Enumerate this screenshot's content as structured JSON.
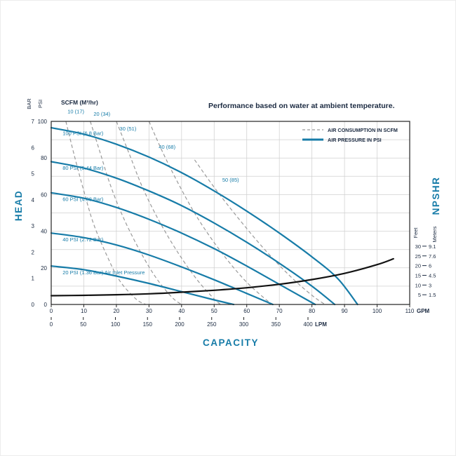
{
  "title": "Performance based on water at ambient temperature.",
  "colors": {
    "accent_blue": "#177CA8",
    "navy_text": "#1B2A41",
    "dashed_gray": "#9A9A9A",
    "grid_gray": "#D0D0D0",
    "npshr_black": "#121212",
    "plot_border": "#222222"
  },
  "legend": {
    "items": [
      {
        "label": "AIR CONSUMPTION IN SCFM",
        "style": "dashed"
      },
      {
        "label": "AIR PRESSURE IN PSI",
        "style": "solid"
      }
    ]
  },
  "chart_data": {
    "type": "line",
    "title": "Performance based on water at ambient temperature.",
    "scfm_header": "SCFM (M³/hr)",
    "x_axis": {
      "title": "CAPACITY",
      "primary_unit": "GPM",
      "primary_ticks": [
        0,
        10,
        20,
        30,
        40,
        50,
        60,
        70,
        80,
        90,
        100,
        110
      ],
      "primary_range": [
        0,
        110
      ],
      "secondary_unit": "LPM",
      "secondary_ticks": [
        0,
        50,
        100,
        150,
        200,
        250,
        300,
        350,
        400
      ],
      "secondary_range": [
        0,
        400
      ]
    },
    "y_axis": {
      "title": "HEAD",
      "primary_unit": "PSI",
      "primary_ticks": [
        0,
        20,
        40,
        60,
        80,
        100
      ],
      "primary_range": [
        0,
        100
      ],
      "secondary_unit": "BAR",
      "secondary_ticks": [
        0,
        1,
        2,
        3,
        4,
        5,
        6,
        7
      ],
      "secondary_range": [
        0,
        7
      ],
      "grid": true
    },
    "right_axis": {
      "title": "NPSHR",
      "unit_feet": "Feet",
      "unit_meters": "Meters",
      "ticks": [
        {
          "feet": 30,
          "meters": 9.1
        },
        {
          "feet": 25,
          "meters": 7.6
        },
        {
          "feet": 20,
          "meters": 6
        },
        {
          "feet": 15,
          "meters": 4.5
        },
        {
          "feet": 10,
          "meters": 3
        },
        {
          "feet": 5,
          "meters": 1.5
        }
      ]
    },
    "air_pressure_curves": [
      {
        "label": "100 PSI (6.8 Bar)",
        "label_anchor": {
          "gpm": 3.5,
          "psi": 92.5
        },
        "points": [
          [
            0,
            96.5
          ],
          [
            10,
            93
          ],
          [
            20,
            87.5
          ],
          [
            30,
            80.5
          ],
          [
            40,
            72
          ],
          [
            50,
            62
          ],
          [
            60,
            51
          ],
          [
            70,
            39
          ],
          [
            80,
            26
          ],
          [
            88,
            14
          ],
          [
            94,
            0
          ]
        ]
      },
      {
        "label": "80 PSI (5.44 Bar)",
        "label_anchor": {
          "gpm": 3.5,
          "psi": 73.5
        },
        "points": [
          [
            0,
            78
          ],
          [
            10,
            74.5
          ],
          [
            20,
            69
          ],
          [
            30,
            62
          ],
          [
            40,
            54
          ],
          [
            50,
            44.5
          ],
          [
            60,
            34
          ],
          [
            70,
            22.5
          ],
          [
            80,
            10
          ],
          [
            87,
            0
          ]
        ]
      },
      {
        "label": "60 PSI (4.08 Bar)",
        "label_anchor": {
          "gpm": 3.5,
          "psi": 56.5
        },
        "points": [
          [
            0,
            61
          ],
          [
            10,
            58
          ],
          [
            20,
            53
          ],
          [
            30,
            46.5
          ],
          [
            40,
            39
          ],
          [
            50,
            30.5
          ],
          [
            60,
            21
          ],
          [
            70,
            11
          ],
          [
            81,
            0
          ]
        ]
      },
      {
        "label": "40 PSI (2.72 Bar)",
        "label_anchor": {
          "gpm": 3.5,
          "psi": 34.5
        },
        "points": [
          [
            0,
            39
          ],
          [
            10,
            36.5
          ],
          [
            20,
            32.5
          ],
          [
            30,
            27
          ],
          [
            40,
            20.5
          ],
          [
            50,
            13.5
          ],
          [
            60,
            6
          ],
          [
            68,
            0
          ]
        ]
      },
      {
        "label": "20 PSI (1.36 Bar) Air Inlet Pressure",
        "label_anchor": {
          "gpm": 3.5,
          "psi": 16.5
        },
        "points": [
          [
            0,
            21
          ],
          [
            10,
            19
          ],
          [
            20,
            15.5
          ],
          [
            30,
            11.5
          ],
          [
            40,
            7
          ],
          [
            50,
            2.5
          ],
          [
            56,
            0
          ]
        ]
      }
    ],
    "air_consumption_curves": [
      {
        "label": "10 (17)",
        "label_anchor": {
          "gpm": 5,
          "psi": 104.5
        },
        "points": [
          [
            4.5,
            100
          ],
          [
            7,
            82
          ],
          [
            10,
            62
          ],
          [
            13,
            44
          ],
          [
            17,
            27
          ],
          [
            21,
            13
          ],
          [
            26,
            3
          ],
          [
            29,
            0
          ]
        ]
      },
      {
        "label": "20 (34)",
        "label_anchor": {
          "gpm": 13,
          "psi": 103
        },
        "points": [
          [
            12,
            100
          ],
          [
            15,
            83
          ],
          [
            18,
            66
          ],
          [
            22,
            48
          ],
          [
            27,
            30
          ],
          [
            32,
            15
          ],
          [
            37,
            4
          ],
          [
            40,
            0
          ]
        ]
      },
      {
        "label": "30 (51)",
        "label_anchor": {
          "gpm": 21,
          "psi": 95
        },
        "points": [
          [
            20,
            100
          ],
          [
            24,
            82
          ],
          [
            28,
            64
          ],
          [
            33,
            46
          ],
          [
            39,
            28
          ],
          [
            45,
            13
          ],
          [
            50,
            3
          ],
          [
            52,
            0
          ]
        ]
      },
      {
        "label": "40 (68)",
        "label_anchor": {
          "gpm": 33,
          "psi": 85
        },
        "points": [
          [
            30,
            100
          ],
          [
            34,
            84
          ],
          [
            39,
            66
          ],
          [
            45,
            47
          ],
          [
            52,
            29
          ],
          [
            59,
            14
          ],
          [
            65,
            4
          ],
          [
            68,
            0
          ]
        ]
      },
      {
        "label": "50 (85)",
        "label_anchor": {
          "gpm": 52.5,
          "psi": 67
        },
        "points": [
          [
            44,
            79
          ],
          [
            50,
            64
          ],
          [
            57,
            48
          ],
          [
            65,
            31
          ],
          [
            73,
            16
          ],
          [
            80,
            5
          ],
          [
            84,
            0
          ]
        ]
      }
    ],
    "npshr_curve": {
      "points_gpm_feet": [
        [
          0,
          4.5
        ],
        [
          10,
          4.7
        ],
        [
          20,
          5
        ],
        [
          30,
          5.5
        ],
        [
          40,
          6.3
        ],
        [
          50,
          7.3
        ],
        [
          60,
          8.6
        ],
        [
          70,
          10.4
        ],
        [
          80,
          12.8
        ],
        [
          90,
          16
        ],
        [
          100,
          20.5
        ],
        [
          105,
          23.5
        ]
      ]
    }
  }
}
